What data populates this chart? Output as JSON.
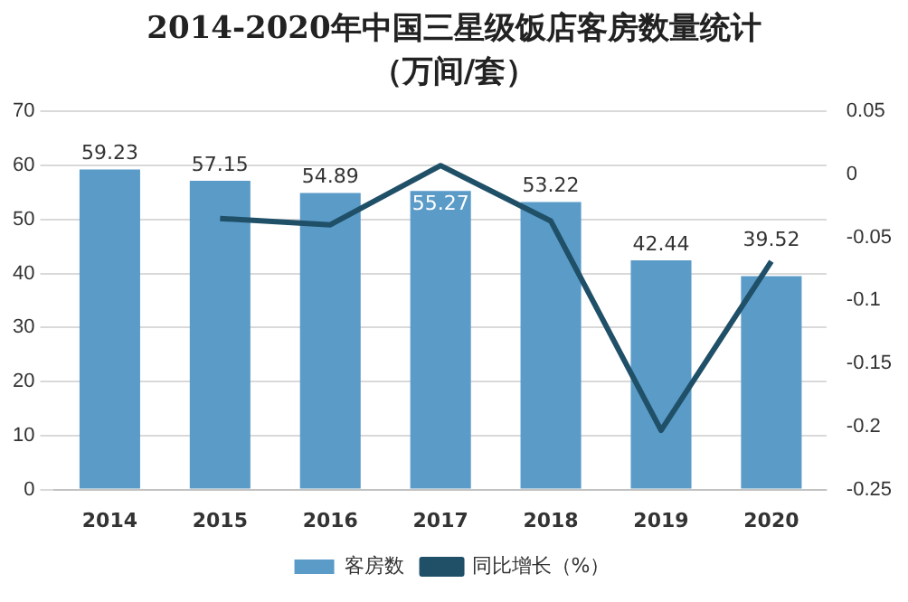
{
  "chart_data": {
    "type": "bar",
    "title": "2014-2020年中国三星级饭店客房数量统计（万间/套）",
    "categories": [
      "2014",
      "2015",
      "2016",
      "2017",
      "2018",
      "2019",
      "2020"
    ],
    "series": [
      {
        "name": "客房数",
        "color": "#5b9bc8",
        "values": [
          59.23,
          57.15,
          54.89,
          55.27,
          53.22,
          42.44,
          39.52
        ],
        "value_labels": [
          "59.23",
          "57.15",
          "54.89",
          "55.27",
          "53.22",
          "42.44",
          "39.52"
        ]
      },
      {
        "name": "同比增长（%）",
        "type": "line",
        "axis": "y2",
        "color": "#1f5068",
        "values": [
          null,
          -0.035,
          -0.04,
          0.007,
          -0.037,
          -0.203,
          -0.069
        ]
      }
    ],
    "ylim": [
      0,
      70
    ],
    "yticks": [
      0,
      10,
      20,
      30,
      40,
      50,
      60,
      70
    ],
    "y2lim": [
      -0.25,
      0.05
    ],
    "y2ticks": [
      -0.25,
      -0.2,
      -0.15,
      -0.1,
      -0.05,
      0,
      0.05
    ],
    "grid": "y",
    "legend": "bottom",
    "marker": "none"
  }
}
